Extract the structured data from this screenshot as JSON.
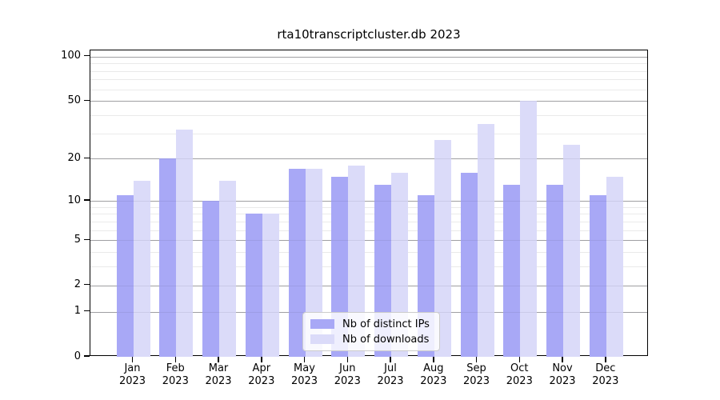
{
  "chart_data": {
    "type": "bar",
    "title": "rta10transcriptcluster.db 2023",
    "categories": [
      "Jan",
      "Feb",
      "Mar",
      "Apr",
      "May",
      "Jun",
      "Jul",
      "Aug",
      "Sep",
      "Oct",
      "Nov",
      "Dec"
    ],
    "year_label": "2023",
    "series": [
      {
        "key": "ips",
        "name": "Nb of distinct IPs",
        "color": "#a8a8f6",
        "values": [
          11,
          20,
          10,
          8,
          17,
          15,
          13,
          11,
          16,
          13,
          13,
          11
        ]
      },
      {
        "key": "downloads",
        "name": "Nb of downloads",
        "color": "#dbdbf9",
        "values": [
          14,
          32,
          14,
          8,
          17,
          18,
          16,
          27,
          35,
          50,
          25,
          15
        ]
      }
    ],
    "xlabel": "",
    "ylabel": "",
    "yscale": "log10(1+y)",
    "ylim": [
      0,
      110
    ],
    "y_ticks": [
      100,
      50,
      20,
      10,
      5,
      2,
      1,
      0
    ],
    "y_major_gridlines": [
      1,
      2,
      5,
      10,
      20,
      50,
      100
    ],
    "y_minor_gridlines": [
      3,
      4,
      6,
      7,
      8,
      9,
      30,
      40,
      60,
      70,
      80,
      90
    ],
    "grid": true,
    "legend_position": "lower center",
    "colors": {
      "major_grid": "#ababab",
      "minor_grid": "#eaeaea",
      "axis": "#000000",
      "background": "#ffffff"
    }
  }
}
